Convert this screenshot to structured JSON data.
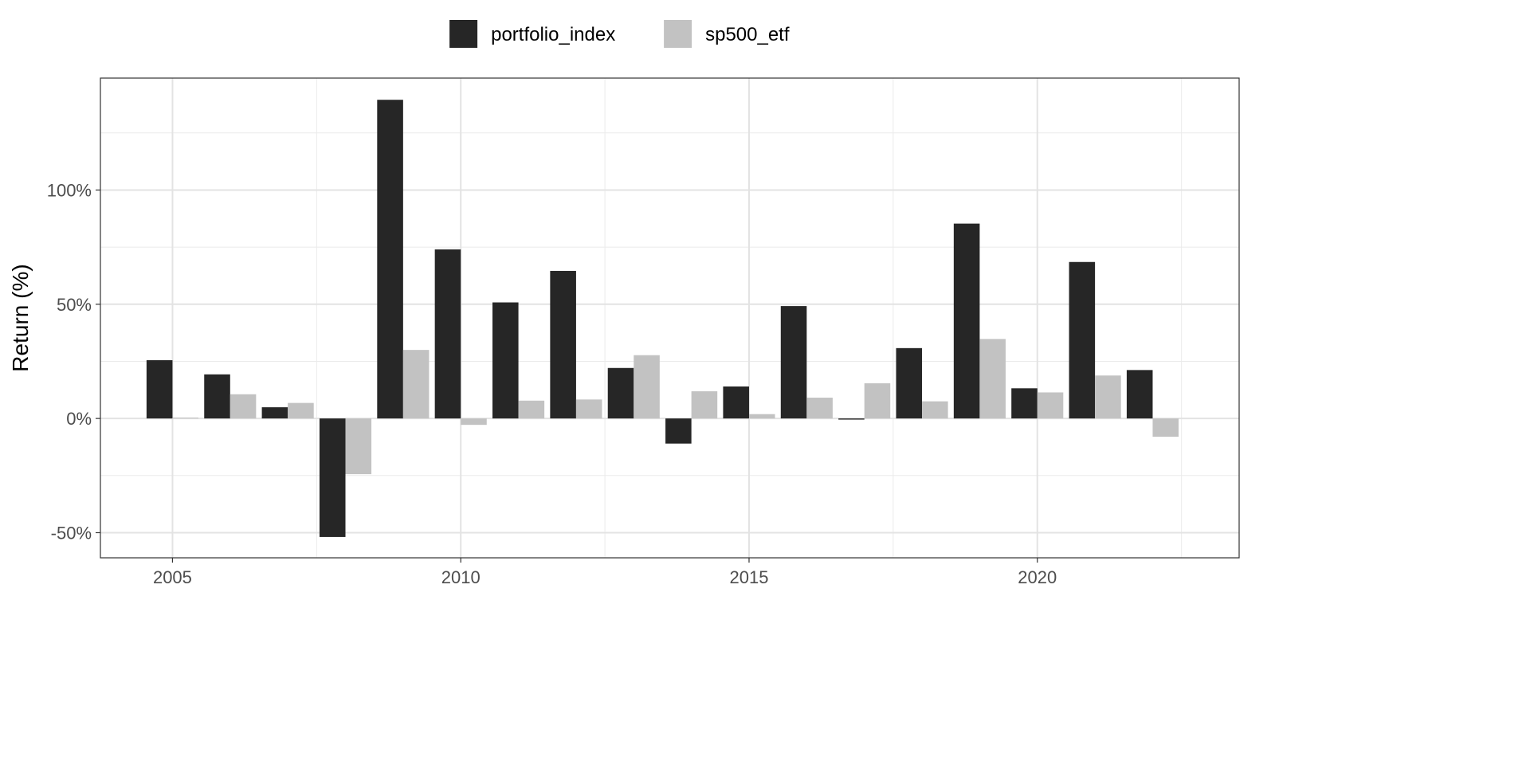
{
  "chart_data": {
    "type": "bar",
    "title": "",
    "xlabel": "",
    "ylabel": "Return (%)",
    "x": [
      2005,
      2006,
      2007,
      2008,
      2009,
      2010,
      2011,
      2012,
      2013,
      2014,
      2015,
      2016,
      2017,
      2018,
      2019,
      2020,
      2021,
      2022
    ],
    "series": [
      {
        "name": "portfolio_index",
        "color": "#262626",
        "values": [
          25.5,
          19.3,
          4.9,
          -51.9,
          139.5,
          74.0,
          50.8,
          64.6,
          22.1,
          -11.0,
          14.0,
          49.2,
          -0.5,
          30.8,
          85.3,
          13.2,
          68.5,
          21.2
        ]
      },
      {
        "name": "sp500_etf",
        "color": "#c2c2c2",
        "values": [
          0.4,
          10.6,
          6.8,
          -24.4,
          30.0,
          -2.8,
          7.8,
          8.3,
          27.7,
          11.9,
          1.9,
          9.1,
          15.4,
          7.5,
          34.8,
          11.4,
          18.8,
          -8.0
        ]
      }
    ],
    "xlim": [
      2003.75,
      2023.5
    ],
    "ylim": [
      -61,
      149
    ],
    "y_ticks": [
      -50,
      0,
      50,
      100
    ],
    "y_tick_labels": [
      "-50%",
      "0%",
      "50%",
      "100%"
    ],
    "x_ticks": [
      2005,
      2010,
      2015,
      2020
    ],
    "x_tick_labels": [
      "2005",
      "2010",
      "2015",
      "2020"
    ],
    "y_minor_ticks": [
      -25,
      25,
      75,
      125
    ],
    "x_minor_ticks": [
      2007.5,
      2012.5,
      2017.5,
      2022.5
    ],
    "grid": true,
    "legend_position": "top-center"
  }
}
